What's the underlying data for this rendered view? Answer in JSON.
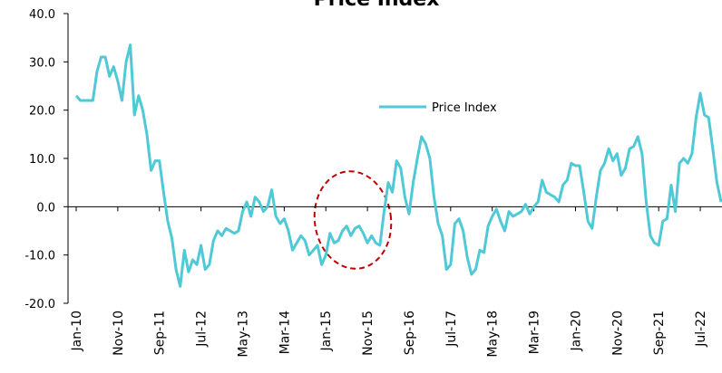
{
  "chart_data": {
    "type": "line",
    "title": "Price Index",
    "categories": [
      "Jan-10",
      null,
      null,
      null,
      null,
      null,
      null,
      null,
      null,
      null,
      "Nov-10",
      null,
      null,
      null,
      null,
      null,
      null,
      null,
      null,
      null,
      "Sep-11",
      null,
      null,
      null,
      null,
      null,
      null,
      null,
      null,
      null,
      "Jul-12",
      null,
      null,
      null,
      null,
      null,
      null,
      null,
      null,
      null,
      "May-13",
      null,
      null,
      null,
      null,
      null,
      null,
      null,
      null,
      null,
      "Mar-14",
      null,
      null,
      null,
      null,
      null,
      null,
      null,
      null,
      null,
      "Jan-15",
      null,
      null,
      null,
      null,
      null,
      null,
      null,
      null,
      null,
      "Nov-15",
      null,
      null,
      null,
      null,
      null,
      null,
      null,
      null,
      null,
      "Sep-16",
      null,
      null,
      null,
      null,
      null,
      null,
      null,
      null,
      null,
      "Jul-17",
      null,
      null,
      null,
      null,
      null,
      null,
      null,
      null,
      null,
      "May-18",
      null,
      null,
      null,
      null,
      null,
      null,
      null,
      null,
      null,
      "Mar-19",
      null,
      null,
      null,
      null,
      null,
      null,
      null,
      null,
      null,
      "Jan-20",
      null,
      null,
      null,
      null,
      null,
      null,
      null,
      null,
      null,
      "Nov-20",
      null,
      null,
      null,
      null,
      null,
      null,
      null,
      null,
      null,
      "Sep-21",
      null,
      null,
      null,
      null,
      null,
      null,
      null,
      null,
      null,
      "Jul-22",
      null,
      null,
      null,
      null,
      null
    ],
    "series": [
      {
        "name": "Price Index",
        "color": "#4fc9d6",
        "values": [
          23,
          22,
          22,
          22,
          22,
          28,
          31,
          31,
          27,
          29,
          26,
          22,
          30,
          33.5,
          19,
          23,
          20,
          15,
          7.5,
          9.5,
          9.5,
          3,
          -3,
          -6.5,
          -13,
          -16.5,
          -9,
          -13.5,
          -11,
          -12,
          -8,
          -13,
          -12,
          -7,
          -5,
          -6,
          -4.5,
          -5,
          -5.5,
          -5,
          -1,
          1,
          -2,
          2,
          1,
          -1,
          0,
          3.5,
          -2,
          -3.5,
          -2.5,
          -5,
          -9,
          -7.5,
          -6,
          -7,
          -10,
          -9,
          -8,
          -12,
          -10,
          -5.5,
          -7.5,
          -7,
          -5,
          -4,
          -6,
          -4.5,
          -4,
          -5.5,
          -7.5,
          -6,
          -7.5,
          -8,
          -1,
          5,
          3,
          9.5,
          8,
          2,
          -1.5,
          5,
          10,
          14.5,
          13,
          10,
          2,
          -3.5,
          -6,
          -13,
          -12,
          -3.5,
          -2.5,
          -5,
          -10.5,
          -14,
          -13,
          -9,
          -9.5,
          -4,
          -2,
          -0.5,
          -3,
          -5,
          -1,
          -2,
          -1.5,
          -1,
          0.5,
          -1.5,
          0,
          1,
          5.5,
          3,
          2.5,
          2,
          1,
          4.5,
          5.5,
          9,
          8.5,
          8.5,
          3,
          -3,
          -4.5,
          2,
          7.5,
          9,
          12,
          9.5,
          11,
          6.5,
          8,
          12,
          12.5,
          14.5,
          11,
          1,
          -6,
          -7.5,
          -8,
          -3,
          -2.5,
          4.5,
          -1,
          9,
          10,
          9,
          11,
          18.5,
          23.5,
          19,
          18.5,
          12,
          5,
          1
        ]
      }
    ],
    "ylim": [
      -20,
      40
    ],
    "yticks": [
      {
        "value": -20,
        "label": "-20.0"
      },
      {
        "value": -10,
        "label": "-10.0"
      },
      {
        "value": 0,
        "label": "0.0"
      },
      {
        "value": 10,
        "label": "10.0"
      },
      {
        "value": 20,
        "label": "20.0"
      },
      {
        "value": 30,
        "label": "30.0"
      },
      {
        "value": 40,
        "label": "40.0"
      }
    ],
    "legend": "top-right"
  }
}
